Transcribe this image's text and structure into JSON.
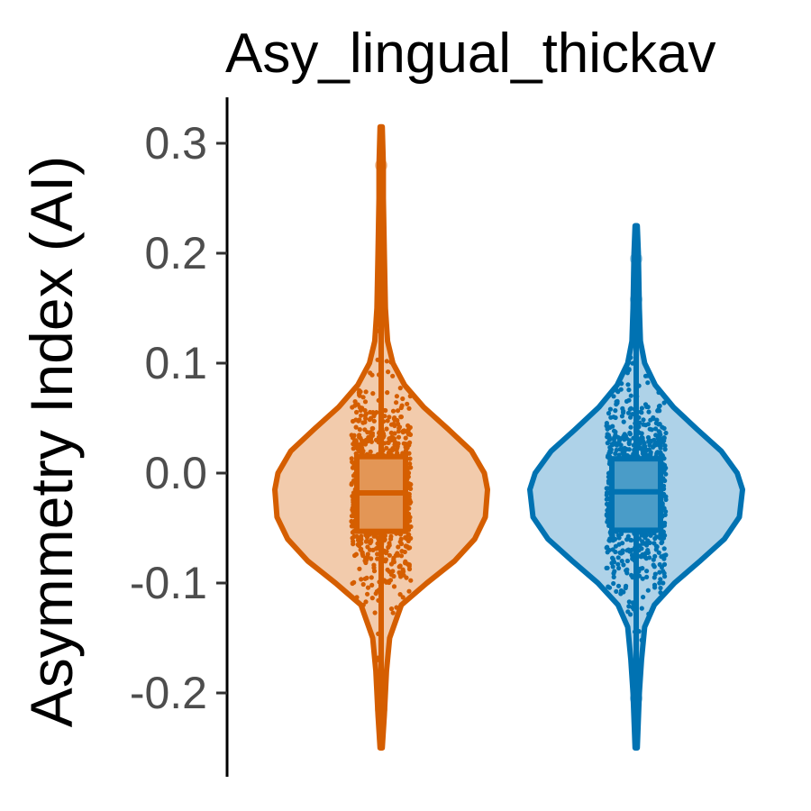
{
  "chart_data": {
    "type": "violin",
    "title": "Asy_lingual_thickav",
    "xlabel": "",
    "ylabel": "Asymmetry Index (AI)",
    "ylim": [
      -0.27,
      0.34
    ],
    "yticks": [
      "-0.2",
      "-0.1",
      "0.0",
      "0.1",
      "0.2",
      "0.3"
    ],
    "ytick_values": [
      -0.2,
      -0.1,
      0.0,
      0.1,
      0.2,
      0.3
    ],
    "grid": false,
    "legend": "none",
    "groups": [
      {
        "color": "#d55e00",
        "fill": "#f2cbac",
        "box_fill": "#e39656",
        "median": -0.018,
        "q1": -0.053,
        "q3": 0.015,
        "min": -0.25,
        "max": 0.315,
        "outliers": [
          0.28,
          0.17,
          0.145,
          -0.2,
          -0.215
        ],
        "density": [
          [
            -0.25,
            0.01
          ],
          [
            -0.22,
            0.03
          ],
          [
            -0.18,
            0.05
          ],
          [
            -0.15,
            0.08
          ],
          [
            -0.12,
            0.19
          ],
          [
            -0.1,
            0.43
          ],
          [
            -0.08,
            0.69
          ],
          [
            -0.06,
            0.88
          ],
          [
            -0.04,
            0.98
          ],
          [
            -0.015,
            1.0
          ],
          [
            0.0,
            0.97
          ],
          [
            0.02,
            0.85
          ],
          [
            0.04,
            0.63
          ],
          [
            0.06,
            0.4
          ],
          [
            0.08,
            0.22
          ],
          [
            0.1,
            0.11
          ],
          [
            0.12,
            0.06
          ],
          [
            0.15,
            0.04
          ],
          [
            0.2,
            0.03
          ],
          [
            0.25,
            0.02
          ],
          [
            0.28,
            0.02
          ],
          [
            0.315,
            0.01
          ]
        ]
      },
      {
        "color": "#0072b2",
        "fill": "#aed2e8",
        "box_fill": "#4a9cc8",
        "median": -0.017,
        "q1": -0.052,
        "q3": 0.013,
        "min": -0.25,
        "max": 0.225,
        "outliers": [
          0.195,
          0.158,
          -0.19,
          -0.205
        ],
        "density": [
          [
            -0.25,
            0.01
          ],
          [
            -0.2,
            0.03
          ],
          [
            -0.17,
            0.05
          ],
          [
            -0.14,
            0.08
          ],
          [
            -0.12,
            0.17
          ],
          [
            -0.1,
            0.36
          ],
          [
            -0.08,
            0.6
          ],
          [
            -0.06,
            0.83
          ],
          [
            -0.04,
            0.97
          ],
          [
            -0.015,
            1.0
          ],
          [
            0.0,
            0.95
          ],
          [
            0.02,
            0.8
          ],
          [
            0.04,
            0.57
          ],
          [
            0.06,
            0.35
          ],
          [
            0.08,
            0.18
          ],
          [
            0.1,
            0.08
          ],
          [
            0.12,
            0.04
          ],
          [
            0.15,
            0.03
          ],
          [
            0.2,
            0.02
          ],
          [
            0.225,
            0.01
          ]
        ]
      }
    ]
  }
}
